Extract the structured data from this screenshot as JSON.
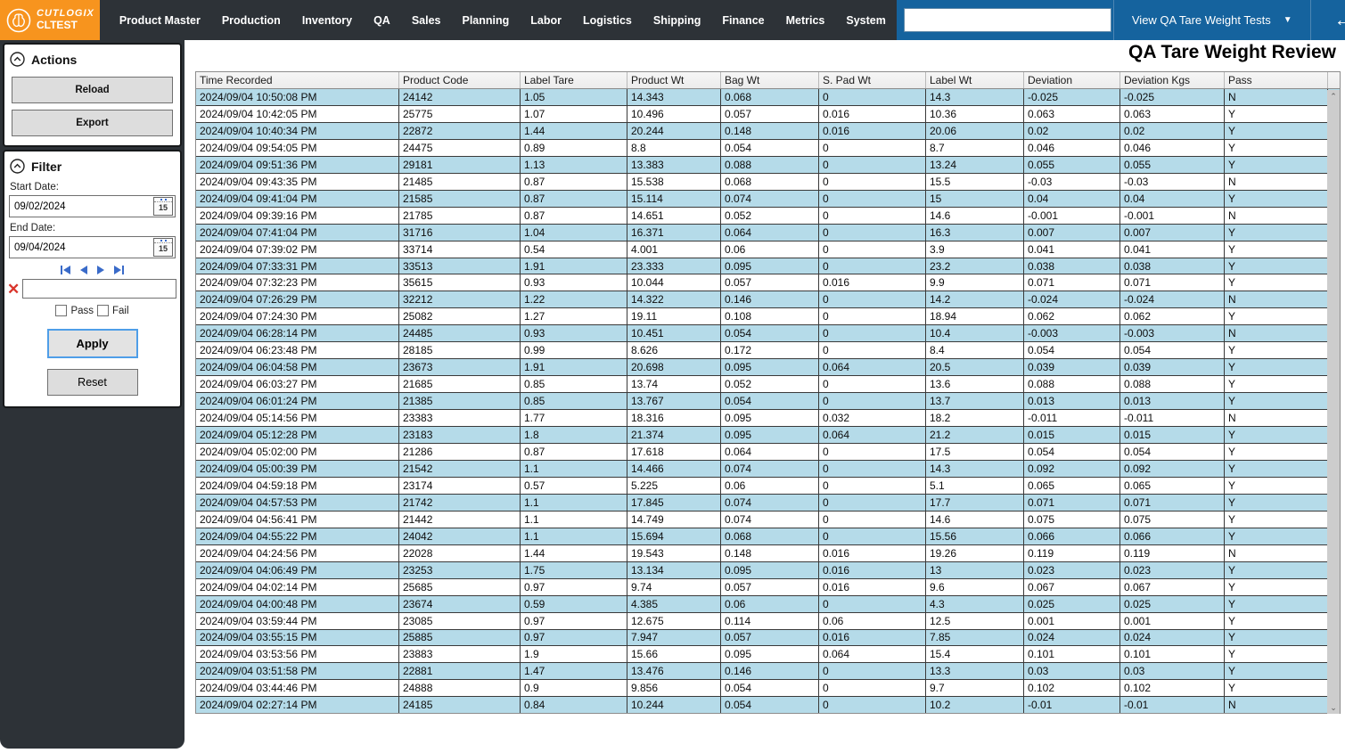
{
  "topbar": {
    "logo": {
      "brand": "CUTLOGIX",
      "env": "CLTEST"
    },
    "menu": [
      "Product Master",
      "Production",
      "Inventory",
      "QA",
      "Sales",
      "Planning",
      "Labor",
      "Logistics",
      "Shipping",
      "Finance",
      "Metrics",
      "System"
    ],
    "search_value": "",
    "view_dropdown_label": "View QA Tare Weight Tests",
    "back_glyph": "←",
    "forward_glyph": "→",
    "close_glyph": "✕",
    "star_glyph": "☆",
    "caret_glyph": "▼"
  },
  "sidebar": {
    "actions": {
      "title": "Actions",
      "reload_label": "Reload",
      "export_label": "Export"
    },
    "filter": {
      "title": "Filter",
      "start_date_label": "Start Date:",
      "start_date_value": "09/02/2024",
      "end_date_label": "End Date:",
      "end_date_value": "09/04/2024",
      "calendar_day": "15",
      "clear_glyph": "✕",
      "search_value": "",
      "pass_label": "Pass",
      "fail_label": "Fail",
      "apply_label": "Apply",
      "reset_label": "Reset"
    }
  },
  "main": {
    "title": "QA Tare Weight Review",
    "table": {
      "columns": [
        "Time Recorded",
        "Product Code",
        "Label Tare",
        "Product Wt",
        "Bag Wt",
        "S. Pad Wt",
        "Label Wt",
        "Deviation",
        "Deviation Kgs",
        "Pass"
      ],
      "rows": [
        [
          "2024/09/04 10:50:08 PM",
          "24142",
          "1.05",
          "14.343",
          "0.068",
          "0",
          "14.3",
          "-0.025",
          "-0.025",
          "N"
        ],
        [
          "2024/09/04 10:42:05 PM",
          "25775",
          "1.07",
          "10.496",
          "0.057",
          "0.016",
          "10.36",
          "0.063",
          "0.063",
          "Y"
        ],
        [
          "2024/09/04 10:40:34 PM",
          "22872",
          "1.44",
          "20.244",
          "0.148",
          "0.016",
          "20.06",
          "0.02",
          "0.02",
          "Y"
        ],
        [
          "2024/09/04 09:54:05 PM",
          "24475",
          "0.89",
          "8.8",
          "0.054",
          "0",
          "8.7",
          "0.046",
          "0.046",
          "Y"
        ],
        [
          "2024/09/04 09:51:36 PM",
          "29181",
          "1.13",
          "13.383",
          "0.088",
          "0",
          "13.24",
          "0.055",
          "0.055",
          "Y"
        ],
        [
          "2024/09/04 09:43:35 PM",
          "21485",
          "0.87",
          "15.538",
          "0.068",
          "0",
          "15.5",
          "-0.03",
          "-0.03",
          "N"
        ],
        [
          "2024/09/04 09:41:04 PM",
          "21585",
          "0.87",
          "15.114",
          "0.074",
          "0",
          "15",
          "0.04",
          "0.04",
          "Y"
        ],
        [
          "2024/09/04 09:39:16 PM",
          "21785",
          "0.87",
          "14.651",
          "0.052",
          "0",
          "14.6",
          "-0.001",
          "-0.001",
          "N"
        ],
        [
          "2024/09/04 07:41:04 PM",
          "31716",
          "1.04",
          "16.371",
          "0.064",
          "0",
          "16.3",
          "0.007",
          "0.007",
          "Y"
        ],
        [
          "2024/09/04 07:39:02 PM",
          "33714",
          "0.54",
          "4.001",
          "0.06",
          "0",
          "3.9",
          "0.041",
          "0.041",
          "Y"
        ],
        [
          "2024/09/04 07:33:31 PM",
          "33513",
          "1.91",
          "23.333",
          "0.095",
          "0",
          "23.2",
          "0.038",
          "0.038",
          "Y"
        ],
        [
          "2024/09/04 07:32:23 PM",
          "35615",
          "0.93",
          "10.044",
          "0.057",
          "0.016",
          "9.9",
          "0.071",
          "0.071",
          "Y"
        ],
        [
          "2024/09/04 07:26:29 PM",
          "32212",
          "1.22",
          "14.322",
          "0.146",
          "0",
          "14.2",
          "-0.024",
          "-0.024",
          "N"
        ],
        [
          "2024/09/04 07:24:30 PM",
          "25082",
          "1.27",
          "19.11",
          "0.108",
          "0",
          "18.94",
          "0.062",
          "0.062",
          "Y"
        ],
        [
          "2024/09/04 06:28:14 PM",
          "24485",
          "0.93",
          "10.451",
          "0.054",
          "0",
          "10.4",
          "-0.003",
          "-0.003",
          "N"
        ],
        [
          "2024/09/04 06:23:48 PM",
          "28185",
          "0.99",
          "8.626",
          "0.172",
          "0",
          "8.4",
          "0.054",
          "0.054",
          "Y"
        ],
        [
          "2024/09/04 06:04:58 PM",
          "23673",
          "1.91",
          "20.698",
          "0.095",
          "0.064",
          "20.5",
          "0.039",
          "0.039",
          "Y"
        ],
        [
          "2024/09/04 06:03:27 PM",
          "21685",
          "0.85",
          "13.74",
          "0.052",
          "0",
          "13.6",
          "0.088",
          "0.088",
          "Y"
        ],
        [
          "2024/09/04 06:01:24 PM",
          "21385",
          "0.85",
          "13.767",
          "0.054",
          "0",
          "13.7",
          "0.013",
          "0.013",
          "Y"
        ],
        [
          "2024/09/04 05:14:56 PM",
          "23383",
          "1.77",
          "18.316",
          "0.095",
          "0.032",
          "18.2",
          "-0.011",
          "-0.011",
          "N"
        ],
        [
          "2024/09/04 05:12:28 PM",
          "23183",
          "1.8",
          "21.374",
          "0.095",
          "0.064",
          "21.2",
          "0.015",
          "0.015",
          "Y"
        ],
        [
          "2024/09/04 05:02:00 PM",
          "21286",
          "0.87",
          "17.618",
          "0.064",
          "0",
          "17.5",
          "0.054",
          "0.054",
          "Y"
        ],
        [
          "2024/09/04 05:00:39 PM",
          "21542",
          "1.1",
          "14.466",
          "0.074",
          "0",
          "14.3",
          "0.092",
          "0.092",
          "Y"
        ],
        [
          "2024/09/04 04:59:18 PM",
          "23174",
          "0.57",
          "5.225",
          "0.06",
          "0",
          "5.1",
          "0.065",
          "0.065",
          "Y"
        ],
        [
          "2024/09/04 04:57:53 PM",
          "21742",
          "1.1",
          "17.845",
          "0.074",
          "0",
          "17.7",
          "0.071",
          "0.071",
          "Y"
        ],
        [
          "2024/09/04 04:56:41 PM",
          "21442",
          "1.1",
          "14.749",
          "0.074",
          "0",
          "14.6",
          "0.075",
          "0.075",
          "Y"
        ],
        [
          "2024/09/04 04:55:22 PM",
          "24042",
          "1.1",
          "15.694",
          "0.068",
          "0",
          "15.56",
          "0.066",
          "0.066",
          "Y"
        ],
        [
          "2024/09/04 04:24:56 PM",
          "22028",
          "1.44",
          "19.543",
          "0.148",
          "0.016",
          "19.26",
          "0.119",
          "0.119",
          "N"
        ],
        [
          "2024/09/04 04:06:49 PM",
          "23253",
          "1.75",
          "13.134",
          "0.095",
          "0.016",
          "13",
          "0.023",
          "0.023",
          "Y"
        ],
        [
          "2024/09/04 04:02:14 PM",
          "25685",
          "0.97",
          "9.74",
          "0.057",
          "0.016",
          "9.6",
          "0.067",
          "0.067",
          "Y"
        ],
        [
          "2024/09/04 04:00:48 PM",
          "23674",
          "0.59",
          "4.385",
          "0.06",
          "0",
          "4.3",
          "0.025",
          "0.025",
          "Y"
        ],
        [
          "2024/09/04 03:59:44 PM",
          "23085",
          "0.97",
          "12.675",
          "0.114",
          "0.06",
          "12.5",
          "0.001",
          "0.001",
          "Y"
        ],
        [
          "2024/09/04 03:55:15 PM",
          "25885",
          "0.97",
          "7.947",
          "0.057",
          "0.016",
          "7.85",
          "0.024",
          "0.024",
          "Y"
        ],
        [
          "2024/09/04 03:53:56 PM",
          "23883",
          "1.9",
          "15.66",
          "0.095",
          "0.064",
          "15.4",
          "0.101",
          "0.101",
          "Y"
        ],
        [
          "2024/09/04 03:51:58 PM",
          "22881",
          "1.47",
          "13.476",
          "0.146",
          "0",
          "13.3",
          "0.03",
          "0.03",
          "Y"
        ],
        [
          "2024/09/04 03:44:46 PM",
          "24888",
          "0.9",
          "9.856",
          "0.054",
          "0",
          "9.7",
          "0.102",
          "0.102",
          "Y"
        ],
        [
          "2024/09/04 02:27:14 PM",
          "24185",
          "0.84",
          "10.244",
          "0.054",
          "0",
          "10.2",
          "-0.01",
          "-0.01",
          "N"
        ]
      ]
    }
  },
  "colors": {
    "topbar_dark": "#2d3237",
    "topbar_blue": "#15639e",
    "brand_orange": "#f7941e",
    "row_alt_blue": "#b5dbe9",
    "grid_line": "#3a3a3a",
    "nav_arrow_blue": "#3a6bc9",
    "clear_red": "#d9342b"
  }
}
